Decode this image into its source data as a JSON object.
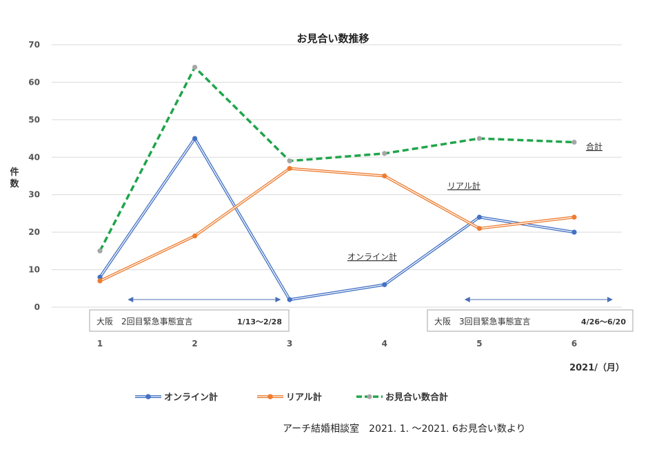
{
  "chart_data": {
    "type": "line",
    "title": "お見合い数推移",
    "ylabel": "件数",
    "xlabel": "2021/（月）",
    "categories": [
      "1",
      "2",
      "3",
      "4",
      "5",
      "6"
    ],
    "ylim": [
      0,
      70
    ],
    "yticks": [
      "0",
      "10",
      "20",
      "30",
      "40",
      "50",
      "60",
      "70"
    ],
    "grid": true,
    "legend_position": "bottom",
    "series": [
      {
        "name": "オンライン計",
        "values": [
          8,
          45,
          2,
          6,
          24,
          20
        ],
        "color": "#4472C4",
        "style": "double"
      },
      {
        "name": "リアル計",
        "values": [
          7,
          19,
          37,
          35,
          21,
          24
        ],
        "color": "#ED7D31",
        "style": "double"
      },
      {
        "name": "お見合い数合計",
        "values": [
          15,
          64,
          39,
          41,
          45,
          44
        ],
        "color": "#1FA54A",
        "style": "dashed"
      }
    ],
    "annotations": {
      "total_label": "合計",
      "real_label": "リアル計",
      "online_label": "オンライン計"
    },
    "periods": [
      {
        "label": "大阪　2回目緊急事態宣言",
        "dates": "1/13〜2/28",
        "from": 1.3,
        "to": 2.9
      },
      {
        "label": "大阪　3回目緊急事態宣言",
        "dates": "4/26〜6/20",
        "from": 4.85,
        "to": 6.4
      }
    ]
  },
  "credit": "アーチ結婚相談室　2021. 1. 〜2021. 6お見合い数より",
  "colors": {
    "grid": "#d9d9d9",
    "arrow": "#4a6fb5",
    "box_border": "#a6a6a6"
  }
}
